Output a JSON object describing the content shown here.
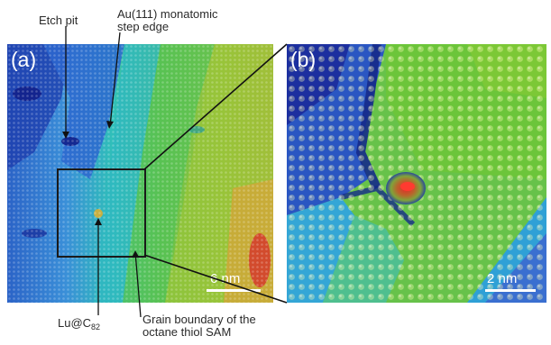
{
  "panels": {
    "a": {
      "letter": "(a)",
      "scale_bar_label": "6 nm"
    },
    "b": {
      "letter": "(b)",
      "scale_bar_label": "2 nm"
    }
  },
  "annotations": {
    "etch_pit": "Etch pit",
    "step_edge_line1": "Au(111) monatomic",
    "step_edge_line2": "step edge",
    "lu_prefix": "Lu@C",
    "lu_subscript": "82",
    "grain_line1": "Grain boundary of the",
    "grain_line2": "octane thiol SAM"
  },
  "colors": {
    "low": "#1a2a9a",
    "mid_low": "#2f8fd6",
    "mid": "#2fc7b0",
    "mid_high": "#79c43a",
    "high": "#d7a52a",
    "peak": "#d9322a"
  }
}
